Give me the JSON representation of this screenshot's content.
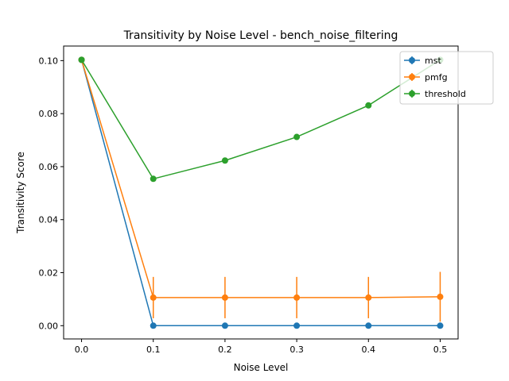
{
  "chart_data": {
    "type": "line",
    "title": "Transitivity by Noise Level - bench_noise_filtering",
    "xlabel": "Noise Level",
    "ylabel": "Transitivity Score",
    "xlim": [
      -0.025,
      0.525
    ],
    "ylim": [
      -0.005,
      0.1055
    ],
    "x_ticks": [
      0.0,
      0.1,
      0.2,
      0.3,
      0.4,
      0.5
    ],
    "x_tick_labels": [
      "0.0",
      "0.1",
      "0.2",
      "0.3",
      "0.4",
      "0.5"
    ],
    "y_ticks": [
      0.0,
      0.02,
      0.04,
      0.06,
      0.08,
      0.1
    ],
    "y_tick_labels": [
      "0.00",
      "0.02",
      "0.04",
      "0.06",
      "0.08",
      "0.10"
    ],
    "grid": false,
    "legend_position": "top-right",
    "x": [
      0.0,
      0.1,
      0.2,
      0.3,
      0.4,
      0.5
    ],
    "series": [
      {
        "name": "mst",
        "color": "#1f77b4",
        "values": [
          0.1003,
          0.0,
          0.0,
          0.0,
          0.0,
          0.0
        ],
        "errors": [
          0.0,
          0.0,
          0.0,
          0.0,
          0.0,
          0.0
        ]
      },
      {
        "name": "pmfg",
        "color": "#ff7f0e",
        "values": [
          0.1003,
          0.0106,
          0.0106,
          0.0106,
          0.0106,
          0.0109
        ],
        "errors": [
          0.0,
          0.0078,
          0.0078,
          0.0078,
          0.0078,
          0.0094
        ]
      },
      {
        "name": "threshold",
        "color": "#2ca02c",
        "values": [
          0.1003,
          0.0554,
          0.0623,
          0.0712,
          0.0831,
          0.1003
        ],
        "errors": [
          0.0,
          0.0,
          0.0,
          0.0,
          0.0,
          0.0
        ]
      }
    ]
  }
}
